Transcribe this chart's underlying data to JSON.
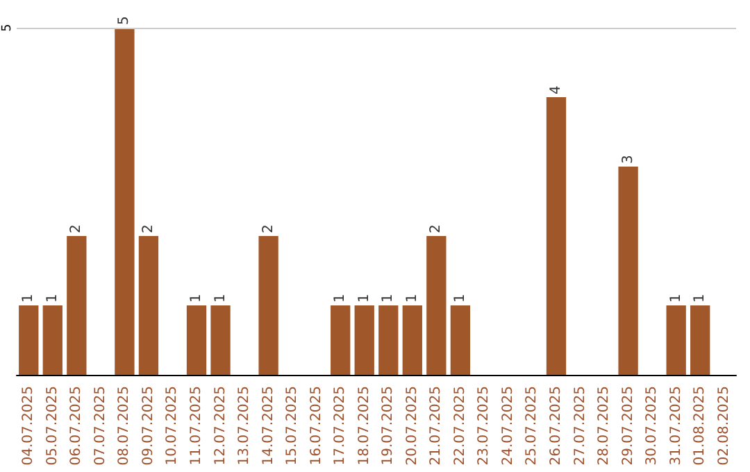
{
  "chart_data": {
    "type": "bar",
    "categories": [
      "04.07.2025",
      "05.07.2025",
      "06.07.2025",
      "07.07.2025",
      "08.07.2025",
      "09.07.2025",
      "10.07.2025",
      "11.07.2025",
      "12.07.2025",
      "13.07.2025",
      "14.07.2025",
      "15.07.2025",
      "16.07.2025",
      "17.07.2025",
      "18.07.2025",
      "19.07.2025",
      "20.07.2025",
      "21.07.2025",
      "22.07.2025",
      "23.07.2025",
      "24.07.2025",
      "25.07.2025",
      "26.07.2025",
      "27.07.2025",
      "28.07.2025",
      "29.07.2025",
      "30.07.2025",
      "31.07.2025",
      "01.08.2025",
      "02.08.2025"
    ],
    "values": [
      1,
      1,
      2,
      null,
      5,
      2,
      null,
      1,
      1,
      null,
      2,
      null,
      null,
      1,
      1,
      1,
      1,
      2,
      1,
      null,
      null,
      null,
      4,
      null,
      null,
      3,
      null,
      1,
      1,
      null
    ],
    "color": "#a0572a",
    "ylim": [
      0,
      5
    ],
    "yticks": [
      5
    ],
    "data_labels": true,
    "ref_lines": [
      {
        "axis": "y",
        "value": 5,
        "color": "#cccccc"
      }
    ]
  }
}
